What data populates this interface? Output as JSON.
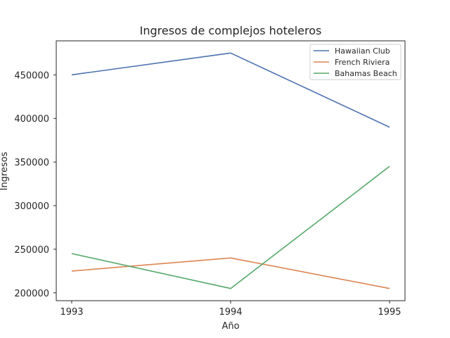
{
  "chart_data": {
    "type": "line",
    "title": "Ingresos de complejos hoteleros",
    "xlabel": "Año",
    "ylabel": "Ingresos",
    "x": [
      1993,
      1994,
      1995
    ],
    "x_ticks": [
      "1993",
      "1994",
      "1995"
    ],
    "y_ticks": [
      "200000",
      "250000",
      "300000",
      "350000",
      "400000",
      "450000"
    ],
    "ylim": [
      191000,
      489000
    ],
    "grid": false,
    "legend_position": "top-right",
    "series": [
      {
        "name": "Hawaiian Club",
        "color": "#4c72b0",
        "values": [
          450000,
          475000,
          390000
        ]
      },
      {
        "name": "French Riviera",
        "color": "#dd8452",
        "values": [
          225000,
          240000,
          205000
        ]
      },
      {
        "name": "Bahamas Beach",
        "color": "#55a868",
        "values": [
          245000,
          205000,
          345000
        ]
      }
    ]
  }
}
